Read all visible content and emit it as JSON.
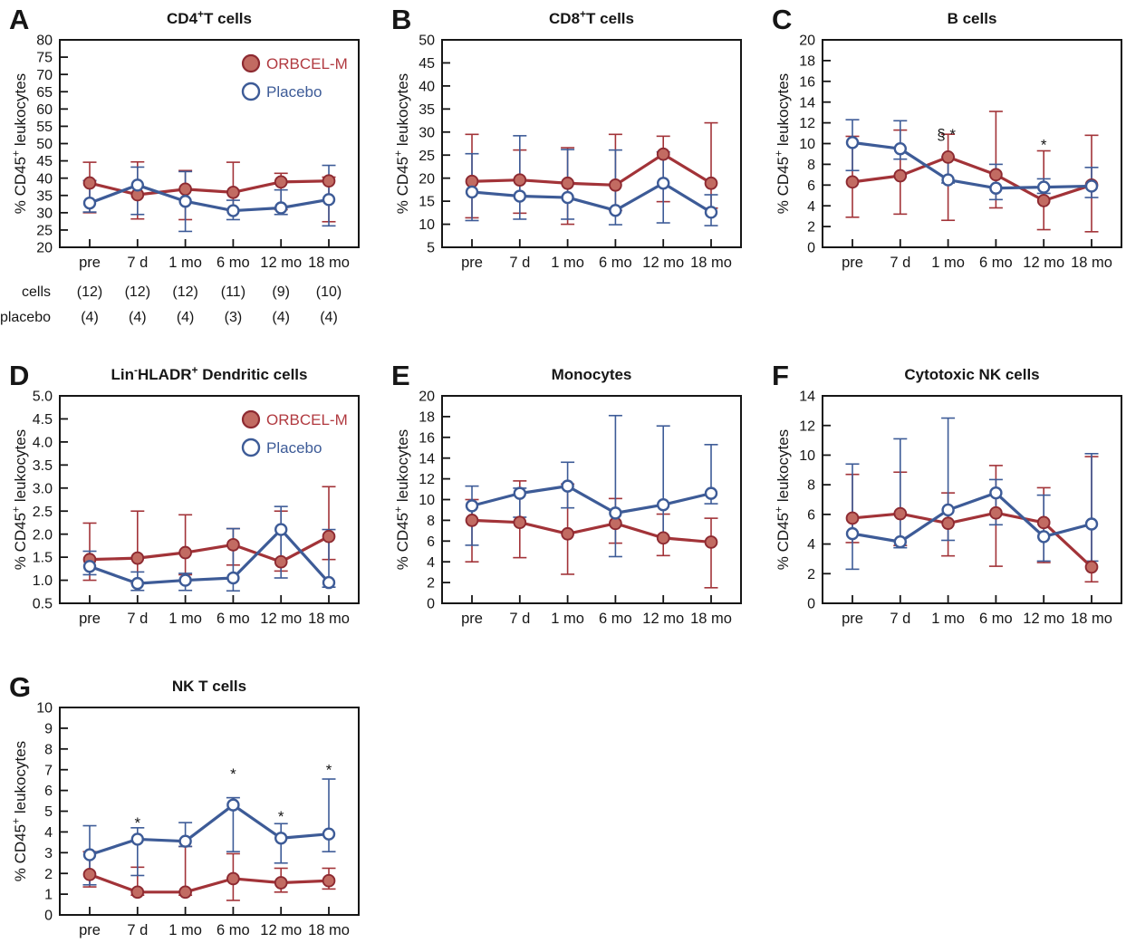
{
  "figure": {
    "legend": {
      "entries": [
        {
          "label": "ORBCEL-M",
          "marker": "filled-red-circle-icon"
        },
        {
          "label": "Placebo",
          "marker": "open-blue-circle-icon"
        }
      ]
    },
    "colors": {
      "axis": "#161616",
      "text": "#161616",
      "red_line": "#a23338",
      "red_marker_fill": "#c26b62",
      "red_marker_ring": "#8d2a31",
      "red_text": "#b13a40",
      "blue_line": "#3d5b97",
      "blue_text": "#3d5b97",
      "open_marker_fill": "#ffffff"
    },
    "ylabel": [
      {
        "t": "% CD45"
      },
      {
        "t": "+",
        "sup": true
      },
      {
        "t": " leukocytes"
      }
    ],
    "categories": [
      "pre",
      "7 d",
      "1 mo",
      "6 mo",
      "12 mo",
      "18 mo"
    ]
  },
  "chart_data": [
    {
      "type": "line",
      "panel": "A",
      "title": [
        {
          "t": "CD4"
        },
        {
          "t": "+",
          "sup": true
        },
        {
          "t": "T cells"
        }
      ],
      "ylim": [
        20,
        80
      ],
      "ystep": 5,
      "ydec": 0,
      "show_legend": true,
      "series": [
        {
          "name": "ORBCEL-M",
          "values": [
            38.6,
            35.2,
            36.8,
            35.9,
            38.9,
            39.2
          ],
          "err_lo": [
            30.0,
            28.2,
            28.0,
            30.7,
            30.9,
            27.4
          ],
          "err_hi": [
            44.6,
            44.7,
            42.2,
            44.6,
            41.4,
            40.3
          ]
        },
        {
          "name": "Placebo",
          "values": [
            32.8,
            38.0,
            33.3,
            30.6,
            31.4,
            33.8
          ],
          "err_lo": [
            30.2,
            29.5,
            24.6,
            28.0,
            29.5,
            26.2
          ],
          "err_hi": [
            39.3,
            43.2,
            41.9,
            33.6,
            36.6,
            43.7
          ]
        }
      ],
      "annotations": [],
      "counts": {
        "rows": [
          {
            "label": "cells",
            "values": [
              "(12)",
              "(12)",
              "(12)",
              "(11)",
              "(9)",
              "(10)"
            ]
          },
          {
            "label": "placebo",
            "values": [
              "(4)",
              "(4)",
              "(4)",
              "(3)",
              "(4)",
              "(4)"
            ]
          }
        ]
      }
    },
    {
      "type": "line",
      "panel": "B",
      "title": [
        {
          "t": "CD8"
        },
        {
          "t": "+",
          "sup": true
        },
        {
          "t": "T cells"
        }
      ],
      "ylim": [
        5,
        50
      ],
      "ystep": 5,
      "ydec": 0,
      "show_legend": false,
      "series": [
        {
          "name": "ORBCEL-M",
          "values": [
            19.3,
            19.6,
            18.9,
            18.5,
            25.2,
            18.9
          ],
          "err_lo": [
            11.4,
            12.4,
            10.0,
            13.0,
            14.9,
            13.5
          ],
          "err_hi": [
            29.5,
            26.1,
            26.6,
            29.5,
            29.1,
            32.0
          ]
        },
        {
          "name": "Placebo",
          "values": [
            17.0,
            16.1,
            15.8,
            13.0,
            18.9,
            12.6
          ],
          "err_lo": [
            10.8,
            11.1,
            11.1,
            9.9,
            10.3,
            9.7
          ],
          "err_hi": [
            25.3,
            29.2,
            26.2,
            26.1,
            25.7,
            16.4
          ]
        }
      ],
      "annotations": []
    },
    {
      "type": "line",
      "panel": "C",
      "title": [
        {
          "t": "B cells"
        }
      ],
      "ylim": [
        0,
        20
      ],
      "ystep": 2,
      "ydec": 0,
      "show_legend": false,
      "series": [
        {
          "name": "ORBCEL-M",
          "values": [
            6.3,
            6.9,
            8.7,
            7.0,
            4.5,
            6.0
          ],
          "err_lo": [
            2.9,
            3.2,
            2.6,
            3.8,
            1.7,
            1.5
          ],
          "err_hi": [
            10.7,
            11.3,
            10.9,
            13.1,
            9.3,
            10.8
          ]
        },
        {
          "name": "Placebo",
          "values": [
            10.1,
            9.5,
            6.5,
            5.7,
            5.8,
            5.9
          ],
          "err_lo": [
            7.4,
            8.5,
            6.2,
            4.6,
            5.2,
            4.8
          ],
          "err_hi": [
            12.3,
            12.2,
            8.7,
            8.0,
            6.6,
            7.7
          ]
        }
      ],
      "annotations": [
        {
          "xi": 2,
          "dx": -2,
          "y": 10.9,
          "text": "§ *"
        },
        {
          "xi": 4,
          "dx": 0,
          "y": 9.9,
          "text": "*"
        }
      ]
    },
    {
      "type": "line",
      "panel": "D",
      "title": [
        {
          "t": "Lin"
        },
        {
          "t": "-",
          "sup": true
        },
        {
          "t": "HLADR"
        },
        {
          "t": "+",
          "sup": true
        },
        {
          "t": " Dendritic cells"
        }
      ],
      "ylim": [
        0.5,
        5.0
      ],
      "ystep": 0.5,
      "ydec": 1,
      "show_legend": true,
      "series": [
        {
          "name": "ORBCEL-M",
          "values": [
            1.45,
            1.48,
            1.6,
            1.77,
            1.4,
            1.95
          ],
          "err_lo": [
            1.0,
            0.93,
            1.12,
            1.33,
            1.2,
            1.45
          ],
          "err_hi": [
            2.24,
            2.5,
            2.42,
            2.12,
            2.5,
            3.03
          ]
        },
        {
          "name": "Placebo",
          "values": [
            1.3,
            0.93,
            1.0,
            1.05,
            2.1,
            0.95
          ],
          "err_lo": [
            1.12,
            0.78,
            0.78,
            0.77,
            1.05,
            0.85
          ],
          "err_hi": [
            1.63,
            1.18,
            1.15,
            2.12,
            2.6,
            2.1
          ]
        }
      ],
      "annotations": []
    },
    {
      "type": "line",
      "panel": "E",
      "title": [
        {
          "t": "Monocytes"
        }
      ],
      "ylim": [
        0,
        20
      ],
      "ystep": 2,
      "ydec": 0,
      "show_legend": false,
      "series": [
        {
          "name": "ORBCEL-M",
          "values": [
            8.0,
            7.8,
            6.7,
            7.7,
            6.3,
            5.9
          ],
          "err_lo": [
            4.0,
            4.4,
            2.8,
            5.8,
            4.6,
            1.5
          ],
          "err_hi": [
            10.0,
            11.8,
            11.5,
            10.1,
            8.6,
            8.2
          ]
        },
        {
          "name": "Placebo",
          "values": [
            9.4,
            10.6,
            11.3,
            8.7,
            9.5,
            10.6
          ],
          "err_lo": [
            5.6,
            8.3,
            9.2,
            4.5,
            6.4,
            9.6
          ],
          "err_hi": [
            11.3,
            11.1,
            13.6,
            18.1,
            17.1,
            15.3
          ]
        }
      ],
      "annotations": []
    },
    {
      "type": "line",
      "panel": "F",
      "title": [
        {
          "t": "Cytotoxic NK cells"
        }
      ],
      "ylim": [
        0,
        14
      ],
      "ystep": 2,
      "ydec": 0,
      "show_legend": false,
      "series": [
        {
          "name": "ORBCEL-M",
          "values": [
            5.75,
            6.05,
            5.4,
            6.1,
            5.45,
            2.45
          ],
          "err_lo": [
            4.1,
            3.9,
            3.2,
            2.5,
            2.75,
            1.45
          ],
          "err_hi": [
            8.7,
            8.85,
            7.45,
            9.3,
            7.8,
            9.9
          ]
        },
        {
          "name": "Placebo",
          "values": [
            4.7,
            4.15,
            6.3,
            7.45,
            4.5,
            5.35
          ],
          "err_lo": [
            2.3,
            3.75,
            4.25,
            5.3,
            2.85,
            2.85
          ],
          "err_hi": [
            9.4,
            11.1,
            12.5,
            8.35,
            7.3,
            10.1
          ]
        }
      ],
      "annotations": []
    },
    {
      "type": "line",
      "panel": "G",
      "title": [
        {
          "t": "NK T cells"
        }
      ],
      "ylim": [
        0,
        10
      ],
      "ystep": 1,
      "ydec": 0,
      "show_legend": false,
      "series": [
        {
          "name": "ORBCEL-M",
          "values": [
            1.95,
            1.1,
            1.1,
            1.75,
            1.55,
            1.65
          ],
          "err_lo": [
            1.35,
            0.95,
            0.95,
            0.7,
            1.1,
            1.25
          ],
          "err_hi": [
            3.05,
            2.3,
            3.3,
            2.95,
            2.25,
            2.25
          ]
        },
        {
          "name": "Placebo",
          "values": [
            2.9,
            3.65,
            3.55,
            5.3,
            3.7,
            3.9
          ],
          "err_lo": [
            1.45,
            1.9,
            3.3,
            3.05,
            2.5,
            3.05
          ],
          "err_hi": [
            4.3,
            4.2,
            4.45,
            5.65,
            4.4,
            6.55
          ]
        }
      ],
      "annotations": [
        {
          "xi": 1,
          "dx": 0,
          "y": 4.45,
          "text": "*"
        },
        {
          "xi": 3,
          "dx": 0,
          "y": 6.8,
          "text": "*"
        },
        {
          "xi": 4,
          "dx": 0,
          "y": 4.75,
          "text": "*"
        },
        {
          "xi": 5,
          "dx": 0,
          "y": 7.0,
          "text": "*"
        }
      ]
    }
  ]
}
